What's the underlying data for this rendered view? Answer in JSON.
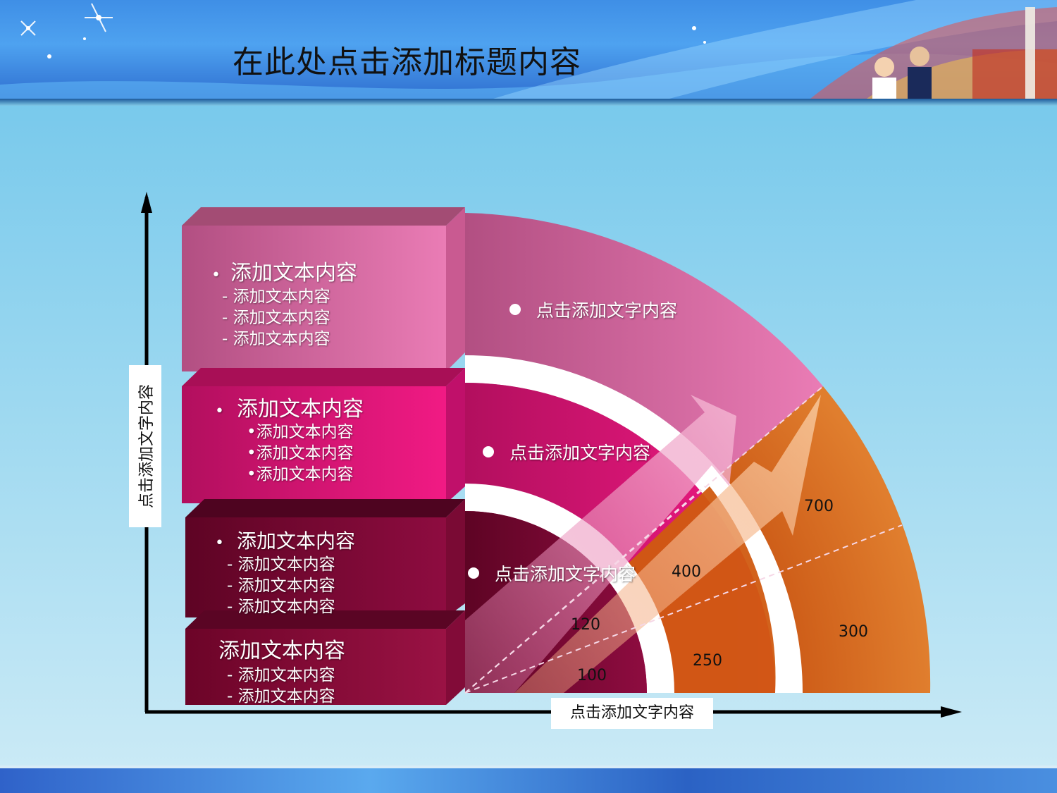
{
  "title": "在此处点击添加标题内容",
  "y_axis_label": "点击添加文字内容",
  "x_axis_label": "点击添加文字内容",
  "colors": {
    "background": "#8fd4ee",
    "header": "#4ea2f0",
    "pink_light": "#e372a8",
    "pink": "#e8157a",
    "crimson": "#8a0a3c",
    "orange_dark": "#d65a0a",
    "orange": "#d97c2a"
  },
  "boxes": [
    {
      "heading": "添加文本内容",
      "items": [
        "- 添加文本内容",
        "- 添加文本内容",
        "- 添加文本内容"
      ]
    },
    {
      "heading": "添加文本内容",
      "items": [
        "•添加文本内容",
        "•添加文本内容",
        "•添加文本内容"
      ]
    },
    {
      "heading": "添加文本内容",
      "items": [
        "-   添加文本内容",
        "-   添加文本内容",
        "-   添加文本内容"
      ]
    },
    {
      "heading": "添加文本内容",
      "items": [
        "- 添加文本内容",
        "- 添加文本内容"
      ]
    }
  ],
  "arc_labels": [
    "点击添加文字内容",
    "点击添加文字内容",
    "点击添加文字内容"
  ],
  "values": [
    "700",
    "400",
    "120",
    "300",
    "250",
    "100"
  ]
}
